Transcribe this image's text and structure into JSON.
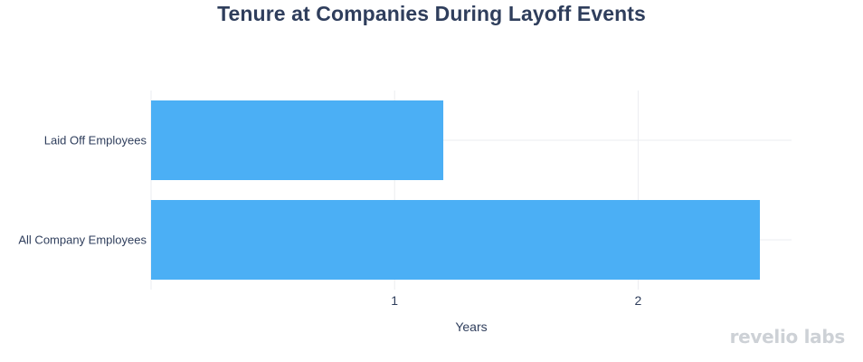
{
  "brand": {
    "logo_text": "revelio labs",
    "logo_color": "#cdd1d6"
  },
  "chart_data": {
    "type": "bar",
    "orientation": "horizontal",
    "title": "Tenure at Companies During Layoff Events",
    "xlabel": "Years",
    "ylabel": "",
    "categories": [
      "Laid Off Employees",
      "All Company Employees"
    ],
    "values": [
      1.2,
      2.5
    ],
    "xlim": [
      0,
      2.63
    ],
    "xticks": [
      1,
      2
    ],
    "grid": true,
    "legend": "none",
    "bar_color": "#4baff5",
    "text_color": "#2f3e5c"
  }
}
